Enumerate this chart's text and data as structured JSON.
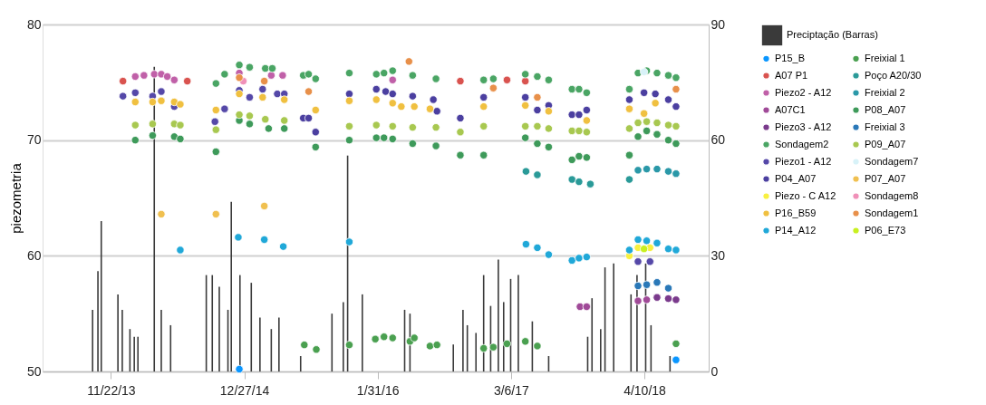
{
  "chart_data": {
    "type": "scatter",
    "ylabel": "piezometria",
    "xlim": [
      "2013-05-01",
      "2018-10-20"
    ],
    "xticks": [
      {
        "value": "2013-11-22",
        "label": "11/22/13"
      },
      {
        "value": "2014-12-27",
        "label": "12/27/14"
      },
      {
        "value": "2016-01-31",
        "label": "1/31/16"
      },
      {
        "value": "2017-03-06",
        "label": "3/6/17"
      },
      {
        "value": "2018-04-10",
        "label": "4/10/18"
      }
    ],
    "ylim": [
      50,
      80
    ],
    "yticks": [
      50,
      60,
      70,
      80
    ],
    "y2lim": [
      0,
      90
    ],
    "y2ticks": [
      0,
      30,
      60,
      90
    ],
    "grid": "y",
    "legend": "right",
    "marker": "circle",
    "series": [
      {
        "name": "P15_B",
        "color": "#0a96ff",
        "x": [
          "2014-12-12",
          "2018-07-14"
        ],
        "values": [
          50.2,
          51.0
        ]
      },
      {
        "name": "A07 P1",
        "color": "#d9534f",
        "x": [
          "2013-12-28",
          "2014-07-09",
          "2016-10-05",
          "2017-02-22",
          "2017-04-18"
        ],
        "values": [
          75.1,
          75.1,
          75.1,
          75.2,
          75.1
        ]
      },
      {
        "name": "Piezo2 - A12",
        "color": "#c060a8",
        "x": [
          "2014-02-03",
          "2014-03-01",
          "2014-04-01",
          "2014-04-22",
          "2014-05-10",
          "2014-05-31",
          "2014-12-12",
          "2015-03-18",
          "2015-04-21",
          "2016-03-16"
        ],
        "values": [
          75.5,
          75.6,
          75.7,
          75.7,
          75.5,
          75.2,
          75.8,
          75.6,
          75.6,
          75.2
        ]
      },
      {
        "name": "A07C1",
        "color": "#a04a98",
        "x": [
          "2017-09-29",
          "2017-10-19",
          "2018-03-22",
          "2018-04-17"
        ],
        "values": [
          55.6,
          55.6,
          56.1,
          56.2
        ]
      },
      {
        "name": "Piezo3 - A12",
        "color": "#7a3a8c",
        "x": [
          "2018-05-18",
          "2018-06-21",
          "2018-07-14"
        ],
        "values": [
          56.4,
          56.3,
          56.2
        ]
      },
      {
        "name": "Sondagem2",
        "color": "#4aa564",
        "x": [
          "2014-10-03",
          "2014-10-29",
          "2014-12-12",
          "2015-01-12",
          "2015-02-28",
          "2015-03-21",
          "2015-06-22",
          "2015-07-08",
          "2015-07-29",
          "2015-11-07",
          "2016-01-27",
          "2016-02-19",
          "2016-03-16",
          "2016-05-15",
          "2016-07-24",
          "2016-12-14",
          "2017-01-12",
          "2017-04-18",
          "2017-05-24",
          "2017-06-27",
          "2017-09-05",
          "2017-09-26",
          "2017-10-19",
          "2018-02-24",
          "2018-03-22",
          "2018-04-17",
          "2018-05-18",
          "2018-06-21",
          "2018-07-14"
        ],
        "values": [
          74.9,
          75.7,
          76.5,
          76.3,
          76.2,
          76.2,
          75.6,
          75.7,
          75.3,
          75.8,
          75.7,
          75.8,
          76.0,
          75.6,
          75.3,
          75.2,
          75.3,
          75.7,
          75.5,
          75.2,
          74.4,
          74.4,
          74.1,
          74.4,
          75.8,
          76.0,
          75.8,
          75.6,
          75.4
        ]
      },
      {
        "name": "Piezo1 - A12",
        "color": "#5548a8",
        "x": [
          "2013-12-28",
          "2014-02-03",
          "2014-03-27",
          "2014-04-22",
          "2014-05-31",
          "2014-09-30",
          "2014-10-29",
          "2014-12-12",
          "2015-01-12",
          "2015-02-20",
          "2015-04-05",
          "2015-04-26",
          "2018-03-22",
          "2018-04-27"
        ],
        "values": [
          73.8,
          74.1,
          73.8,
          74.2,
          72.9,
          71.6,
          72.7,
          74.3,
          73.7,
          74.4,
          74.0,
          74.0,
          59.5,
          59.5
        ]
      },
      {
        "name": "P04_A07",
        "color": "#4b3fa0",
        "x": [
          "2015-06-22",
          "2015-07-08",
          "2015-07-29",
          "2015-11-07",
          "2016-01-27",
          "2016-02-24",
          "2016-03-16",
          "2016-05-15",
          "2016-07-16",
          "2016-07-27",
          "2016-10-05",
          "2016-12-14",
          "2017-04-18",
          "2017-05-24",
          "2017-06-27",
          "2017-09-05",
          "2017-09-26",
          "2017-10-19",
          "2018-02-24",
          "2018-04-09",
          "2018-05-13",
          "2018-06-21",
          "2018-07-14"
        ],
        "values": [
          71.9,
          71.9,
          70.7,
          74.0,
          74.4,
          74.2,
          74.0,
          73.8,
          73.5,
          72.5,
          71.9,
          73.7,
          73.7,
          72.6,
          73.0,
          72.2,
          72.2,
          72.6,
          73.5,
          74.1,
          74.0,
          73.5,
          72.9
        ]
      },
      {
        "name": "Piezo - C A12",
        "color": "#f8f040",
        "x": [
          "2018-02-24",
          "2018-03-22",
          "2018-04-27"
        ],
        "values": [
          60.0,
          60.7,
          60.7
        ]
      },
      {
        "name": "P16_B59",
        "color": "#f0c040",
        "x": [
          "2014-02-03",
          "2014-03-27",
          "2014-04-22",
          "2014-05-31",
          "2014-06-18",
          "2014-10-03",
          "2014-12-12",
          "2015-02-20",
          "2015-04-26",
          "2015-07-29",
          "2015-11-07",
          "2016-01-27",
          "2016-03-16",
          "2016-04-11",
          "2016-05-20",
          "2016-07-06",
          "2016-12-14",
          "2017-04-18",
          "2017-06-27",
          "2017-10-19",
          "2018-02-24",
          "2018-04-09",
          "2018-05-13"
        ],
        "values": [
          73.3,
          73.3,
          73.4,
          73.3,
          73.1,
          72.6,
          74.0,
          73.7,
          73.5,
          72.6,
          73.4,
          73.5,
          73.2,
          72.9,
          72.9,
          72.7,
          72.9,
          73.0,
          72.5,
          71.7,
          72.7,
          72.3,
          73.2
        ]
      },
      {
        "name": "P14_A12",
        "color": "#20a8d8",
        "x": [
          "2014-06-18",
          "2014-12-09",
          "2015-02-25",
          "2015-04-23",
          "2015-11-07",
          "2017-04-20",
          "2017-05-24",
          "2017-06-27",
          "2017-09-05",
          "2017-09-26",
          "2017-10-19",
          "2018-02-24",
          "2018-03-22",
          "2018-04-17",
          "2018-05-18",
          "2018-06-21",
          "2018-07-14"
        ],
        "values": [
          60.5,
          61.6,
          61.4,
          60.8,
          61.2,
          61.0,
          60.7,
          60.1,
          59.6,
          59.8,
          59.9,
          60.5,
          61.4,
          61.3,
          61.1,
          60.6,
          60.5
        ]
      },
      {
        "name": "Freixial 1",
        "color": "#4aa050",
        "x": [
          "2015-06-25",
          "2015-07-31",
          "2015-11-07",
          "2016-01-24",
          "2016-02-19",
          "2016-03-16",
          "2016-05-07",
          "2016-05-20",
          "2016-07-06",
          "2016-07-27",
          "2016-12-14",
          "2017-01-12",
          "2017-02-22",
          "2017-04-18",
          "2017-05-24",
          "2018-07-14"
        ],
        "values": [
          52.3,
          51.9,
          52.3,
          52.8,
          53.0,
          52.9,
          52.6,
          52.9,
          52.2,
          52.3,
          52.0,
          52.1,
          52.4,
          52.6,
          52.2,
          52.4
        ]
      },
      {
        "name": "Poço A20/30",
        "color": "#2a9a98",
        "x": [
          "2017-04-20",
          "2017-05-24",
          "2017-09-05",
          "2017-09-26",
          "2017-10-30",
          "2018-02-24"
        ],
        "values": [
          67.3,
          67.0,
          66.6,
          66.4,
          66.2,
          66.6
        ]
      },
      {
        "name": "Freixial 2",
        "color": "#2a98a8",
        "x": [
          "2018-03-22",
          "2018-04-17",
          "2018-05-18",
          "2018-06-21",
          "2018-07-14"
        ],
        "values": [
          67.4,
          67.5,
          67.5,
          67.3,
          67.1
        ]
      },
      {
        "name": "P08_A07",
        "color": "#3e9a5a",
        "x": [
          "2014-02-03",
          "2014-03-27",
          "2014-05-31",
          "2014-06-18",
          "2014-10-03",
          "2014-12-12",
          "2015-01-12",
          "2015-03-10",
          "2015-04-26",
          "2015-07-29",
          "2015-11-07",
          "2016-01-27",
          "2016-02-19",
          "2016-03-16",
          "2016-05-15",
          "2016-07-24",
          "2016-10-05",
          "2016-12-14",
          "2017-04-18",
          "2017-05-24",
          "2017-06-27",
          "2017-09-05",
          "2017-09-26",
          "2017-10-19",
          "2018-02-24",
          "2018-03-22",
          "2018-04-17",
          "2018-05-18",
          "2018-06-21",
          "2018-07-14"
        ],
        "values": [
          70.0,
          70.4,
          70.3,
          70.1,
          69.0,
          71.7,
          71.4,
          71.0,
          71.0,
          69.4,
          70.0,
          70.2,
          70.2,
          70.1,
          69.7,
          69.5,
          68.7,
          68.7,
          70.2,
          69.7,
          69.4,
          68.3,
          68.6,
          68.5,
          68.7,
          70.3,
          70.8,
          70.5,
          70.0,
          69.7
        ]
      },
      {
        "name": "Freixial 3",
        "color": "#2a78b8",
        "x": [
          "2018-03-22",
          "2018-04-17",
          "2018-05-18",
          "2018-06-21"
        ],
        "values": [
          57.4,
          57.5,
          57.7,
          57.2
        ]
      },
      {
        "name": "P09_A07",
        "color": "#a8c850",
        "x": [
          "2014-02-03",
          "2014-03-27",
          "2014-05-31",
          "2014-06-18",
          "2014-10-03",
          "2014-12-12",
          "2015-01-12",
          "2015-02-28",
          "2015-04-26",
          "2015-11-07",
          "2016-01-27",
          "2016-03-16",
          "2016-05-15",
          "2016-07-24",
          "2016-10-05",
          "2016-12-14",
          "2017-04-18",
          "2017-05-24",
          "2017-06-27",
          "2017-09-05",
          "2017-09-26",
          "2017-10-19",
          "2018-02-24",
          "2018-03-22",
          "2018-04-17",
          "2018-05-18",
          "2018-06-21",
          "2018-07-14"
        ],
        "values": [
          71.3,
          71.4,
          71.4,
          71.3,
          70.9,
          72.2,
          72.1,
          71.8,
          71.7,
          71.2,
          71.3,
          71.2,
          71.1,
          71.1,
          70.7,
          71.2,
          71.2,
          71.2,
          71.0,
          70.8,
          70.8,
          70.7,
          71.0,
          71.5,
          71.6,
          71.5,
          71.3,
          71.2
        ]
      },
      {
        "name": "Sondagem7",
        "color": "#d8f2f8",
        "x": [
          "2018-04-09"
        ],
        "values": [
          75.9
        ]
      },
      {
        "name": "P07_A07",
        "color": "#f0c050",
        "x": [
          "2014-04-22",
          "2014-10-03",
          "2015-02-25"
        ],
        "values": [
          63.6,
          63.6,
          64.3
        ]
      },
      {
        "name": "Sondagem8",
        "color": "#f090b8",
        "x": [
          "2014-12-24"
        ],
        "values": [
          75.1
        ]
      },
      {
        "name": "Sondagem1",
        "color": "#e8904a",
        "x": [
          "2014-12-12",
          "2015-02-25",
          "2015-07-08",
          "2016-05-04",
          "2017-01-12",
          "2017-05-24",
          "2018-07-14"
        ],
        "values": [
          75.4,
          75.1,
          74.2,
          76.8,
          74.5,
          73.7,
          74.4
        ]
      },
      {
        "name": "P06_E73",
        "color": "#c8f020",
        "x": [
          "2018-04-09"
        ],
        "values": [
          60.6
        ]
      },
      {
        "name": "Preciptação (Barras)",
        "type": "bar",
        "axis": "y2",
        "color": "#3a3a3a",
        "x": [
          "2013-09-28",
          "2013-10-14",
          "2013-10-24",
          "2013-12-13",
          "2013-12-26",
          "2014-01-18",
          "2014-01-31",
          "2014-02-11",
          "2014-04-01",
          "2014-04-22",
          "2014-05-20",
          "2014-09-04",
          "2014-09-22",
          "2014-10-13",
          "2014-11-08",
          "2014-11-18",
          "2014-12-14",
          "2015-01-17",
          "2015-02-12",
          "2015-03-18",
          "2015-04-10",
          "2015-06-14",
          "2015-09-16",
          "2015-10-20",
          "2015-11-02",
          "2015-12-16",
          "2016-04-21",
          "2016-05-07",
          "2016-09-14",
          "2016-10-13",
          "2016-10-26",
          "2016-11-21",
          "2016-12-14",
          "2017-01-04",
          "2017-01-27",
          "2017-02-12",
          "2017-03-05",
          "2017-03-28",
          "2017-05-09",
          "2017-06-27",
          "2017-10-22",
          "2017-11-04",
          "2017-11-30",
          "2017-12-13",
          "2018-01-08",
          "2018-03-01",
          "2018-03-19",
          "2018-04-14",
          "2018-04-30",
          "2018-06-26"
        ],
        "values": [
          16,
          26,
          39,
          20,
          16,
          11,
          9,
          9,
          79,
          16,
          12,
          25,
          25,
          22,
          16,
          44,
          25,
          23,
          14,
          11,
          14,
          4,
          15,
          18,
          56,
          20,
          16,
          15,
          7,
          16,
          12,
          10,
          25,
          17,
          29,
          18,
          24,
          25,
          13,
          4,
          9,
          19,
          11,
          27,
          28,
          20,
          25,
          28,
          12,
          4
        ]
      }
    ]
  }
}
